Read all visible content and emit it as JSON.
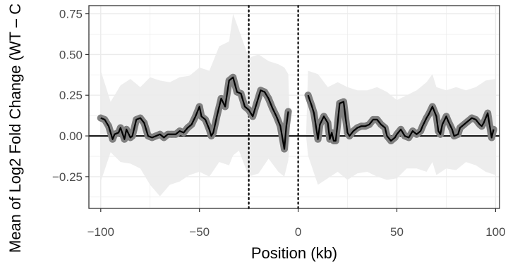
{
  "chart_data": {
    "type": "line",
    "xlabel": "Position (kb)",
    "ylabel": "Mean of Log2 Fold Change (WT – C",
    "xlim": [
      -106,
      102
    ],
    "ylim": [
      -0.445,
      0.8
    ],
    "x_ticks": [
      {
        "value": -100,
        "label": "−100"
      },
      {
        "value": -50,
        "label": "−50"
      },
      {
        "value": 0,
        "label": "0"
      },
      {
        "value": 50,
        "label": "50"
      },
      {
        "value": 100,
        "label": "100"
      }
    ],
    "y_ticks": [
      {
        "value": 0.75,
        "label": "0.75"
      },
      {
        "value": 0.5,
        "label": "0.50"
      },
      {
        "value": 0.25,
        "label": "0.25"
      },
      {
        "value": 0.0,
        "label": "0.00"
      },
      {
        "value": -0.25,
        "label": "−0.25"
      }
    ],
    "reference_lines": {
      "horizontal": 0,
      "vertical_dotted": [
        -25,
        0
      ]
    },
    "grid": true,
    "colors": {
      "line": "#000000",
      "points": "#7f7f7f",
      "ribbon": "#ebebeb",
      "grid": "#ebebeb",
      "panel_border": "#333333"
    },
    "segments": [
      {
        "points": [
          [
            -100,
            0.11
          ],
          [
            -98,
            0.1
          ],
          [
            -96,
            0.06
          ],
          [
            -94,
            -0.02
          ],
          [
            -93,
            0.01
          ],
          [
            -91,
            0.02
          ],
          [
            -90,
            0.05
          ],
          [
            -88,
            -0.02
          ],
          [
            -87,
            0.04
          ],
          [
            -85,
            -0.01
          ],
          [
            -84,
            0.0
          ],
          [
            -82,
            0.1
          ],
          [
            -80,
            0.11
          ],
          [
            -78,
            0.08
          ],
          [
            -76,
            0.0
          ],
          [
            -74,
            -0.01
          ],
          [
            -72,
            0.0
          ],
          [
            -70,
            0.01
          ],
          [
            -68,
            -0.01
          ],
          [
            -66,
            0.01
          ],
          [
            -64,
            0.01
          ],
          [
            -62,
            0.01
          ],
          [
            -60,
            0.03
          ],
          [
            -58,
            0.02
          ],
          [
            -56,
            0.05
          ],
          [
            -54,
            0.07
          ],
          [
            -52,
            0.12
          ],
          [
            -50,
            0.18
          ],
          [
            -49,
            0.12
          ],
          [
            -47,
            0.1
          ],
          [
            -45,
            0.04
          ],
          [
            -44,
            0.0
          ],
          [
            -43,
            0.02
          ],
          [
            -41,
            0.13
          ],
          [
            -39,
            0.23
          ],
          [
            -37,
            0.18
          ],
          [
            -35,
            0.34
          ],
          [
            -33,
            0.36
          ],
          [
            -31,
            0.27
          ],
          [
            -29,
            0.26
          ],
          [
            -27,
            0.18
          ],
          [
            -25,
            0.16
          ],
          [
            -23,
            0.12
          ],
          [
            -21,
            0.2
          ],
          [
            -19,
            0.28
          ],
          [
            -17,
            0.27
          ],
          [
            -15,
            0.23
          ],
          [
            -13,
            0.17
          ],
          [
            -11,
            0.12
          ],
          [
            -9,
            0.06
          ],
          [
            -7,
            -0.08
          ],
          [
            -6,
            0.06
          ],
          [
            -5,
            0.15
          ]
        ]
      },
      {
        "points": [
          [
            5,
            0.25
          ],
          [
            7,
            0.18
          ],
          [
            8,
            0.14
          ],
          [
            9,
            0.06
          ],
          [
            10,
            -0.02
          ],
          [
            11,
            0.07
          ],
          [
            13,
            0.12
          ],
          [
            15,
            0.08
          ],
          [
            16,
            -0.02
          ],
          [
            17,
            0.02
          ],
          [
            18,
            -0.03
          ],
          [
            19,
            -0.03
          ],
          [
            20,
            0.08
          ],
          [
            21,
            0.2
          ],
          [
            23,
            0.21
          ],
          [
            24,
            0.11
          ],
          [
            25,
            0.02
          ],
          [
            26,
            0.0
          ],
          [
            28,
            0.03
          ],
          [
            30,
            0.05
          ],
          [
            32,
            0.06
          ],
          [
            34,
            0.06
          ],
          [
            36,
            0.07
          ],
          [
            38,
            0.1
          ],
          [
            40,
            0.1
          ],
          [
            42,
            0.07
          ],
          [
            44,
            0.05
          ],
          [
            45,
            0.0
          ],
          [
            47,
            -0.03
          ],
          [
            49,
            -0.01
          ],
          [
            50,
            0.01
          ],
          [
            52,
            0.04
          ],
          [
            54,
            0.0
          ],
          [
            56,
            -0.01
          ],
          [
            58,
            0.03
          ],
          [
            60,
            0.01
          ],
          [
            62,
            0.03
          ],
          [
            63,
            0.06
          ],
          [
            65,
            0.11
          ],
          [
            66,
            0.13
          ],
          [
            68,
            0.18
          ],
          [
            70,
            0.12
          ],
          [
            71,
            0.03
          ],
          [
            72,
            0.01
          ],
          [
            73,
            0.07
          ],
          [
            75,
            0.12
          ],
          [
            76,
            0.09
          ],
          [
            78,
            0.04
          ],
          [
            79,
            0.0
          ],
          [
            81,
            0.01
          ],
          [
            82,
            0.05
          ],
          [
            84,
            0.07
          ],
          [
            86,
            0.09
          ],
          [
            88,
            0.11
          ],
          [
            90,
            0.1
          ],
          [
            92,
            0.07
          ],
          [
            93,
            0.06
          ],
          [
            94,
            0.08
          ],
          [
            96,
            0.14
          ],
          [
            98,
            -0.01
          ],
          [
            99,
            0.04
          ]
        ]
      }
    ],
    "ribbon": [
      [
        -100,
        -0.28,
        0.4
      ],
      [
        -95,
        -0.1,
        0.21
      ],
      [
        -90,
        -0.16,
        0.31
      ],
      [
        -85,
        -0.17,
        0.35
      ],
      [
        -80,
        -0.2,
        0.3
      ],
      [
        -75,
        -0.3,
        0.36
      ],
      [
        -70,
        -0.37,
        0.34
      ],
      [
        -65,
        -0.3,
        0.33
      ],
      [
        -60,
        -0.28,
        0.36
      ],
      [
        -55,
        -0.24,
        0.37
      ],
      [
        -50,
        -0.22,
        0.42
      ],
      [
        -45,
        -0.25,
        0.4
      ],
      [
        -40,
        -0.16,
        0.55
      ],
      [
        -35,
        -0.18,
        0.58
      ],
      [
        -33,
        -0.12,
        0.75
      ],
      [
        -30,
        -0.09,
        0.65
      ],
      [
        -25,
        -0.25,
        0.48
      ],
      [
        -20,
        -0.23,
        0.5
      ],
      [
        -15,
        -0.14,
        0.46
      ],
      [
        -10,
        -0.22,
        0.44
      ],
      [
        -7,
        -0.25,
        0.42
      ],
      [
        -5,
        -0.15,
        0.38
      ],
      [
        -4,
        0.0,
        0.0
      ],
      [
        4,
        0.0,
        0.0
      ],
      [
        5,
        -0.12,
        0.4
      ],
      [
        10,
        -0.3,
        0.38
      ],
      [
        15,
        -0.26,
        0.3
      ],
      [
        20,
        -0.22,
        0.33
      ],
      [
        25,
        -0.27,
        0.3
      ],
      [
        30,
        -0.23,
        0.28
      ],
      [
        35,
        -0.22,
        0.28
      ],
      [
        40,
        -0.25,
        0.3
      ],
      [
        45,
        -0.27,
        0.27
      ],
      [
        50,
        -0.26,
        0.22
      ],
      [
        55,
        -0.2,
        0.25
      ],
      [
        60,
        -0.2,
        0.28
      ],
      [
        65,
        -0.22,
        0.33
      ],
      [
        68,
        -0.16,
        0.38
      ],
      [
        70,
        -0.24,
        0.3
      ],
      [
        75,
        -0.2,
        0.28
      ],
      [
        80,
        -0.21,
        0.3
      ],
      [
        85,
        -0.16,
        0.28
      ],
      [
        90,
        -0.18,
        0.3
      ],
      [
        95,
        -0.22,
        0.34
      ],
      [
        100,
        -0.24,
        0.35
      ]
    ]
  }
}
